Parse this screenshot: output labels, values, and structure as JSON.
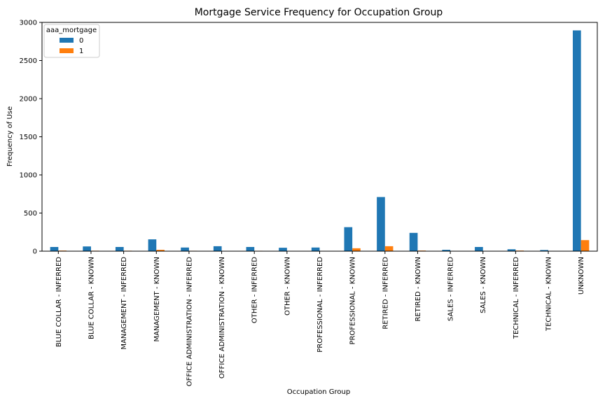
{
  "chart_data": {
    "type": "bar",
    "title": "Mortgage Service Frequency for Occupation Group",
    "xlabel": "Occupation Group",
    "ylabel": "Frequency of Use",
    "ylim": [
      0,
      3000
    ],
    "yticks": [
      0,
      500,
      1000,
      1500,
      2000,
      2500,
      3000
    ],
    "grid": false,
    "legend": {
      "title": "aaa_mortgage",
      "placement": "top-left"
    },
    "categories": [
      "BLUE COLLAR - INFERRED",
      "BLUE COLLAR - KNOWN",
      "MANAGEMENT - INFERRED",
      "MANAGEMENT - KNOWN",
      "OFFICE ADMINISTRATION - INFERRED",
      "OFFICE ADMINISTRATION - KNOWN",
      "OTHER - INFERRED",
      "OTHER - KNOWN",
      "PROFESSIONAL - INFERRED",
      "PROFESSIONAL - KNOWN",
      "RETIRED - INFERRED",
      "RETIRED - KNOWN",
      "SALES - INFERRED",
      "SALES - KNOWN",
      "TECHNICAL - INFERRED",
      "TECHNICAL - KNOWN",
      "UNKNOWN"
    ],
    "series": [
      {
        "name": "0",
        "color": "#1f77b4",
        "values": [
          55,
          62,
          55,
          155,
          48,
          65,
          55,
          45,
          48,
          315,
          710,
          240,
          18,
          55,
          25,
          15,
          2895
        ]
      },
      {
        "name": "1",
        "color": "#ff7f0e",
        "values": [
          8,
          6,
          6,
          18,
          5,
          2,
          5,
          0,
          0,
          38,
          65,
          8,
          0,
          0,
          8,
          0,
          145
        ]
      }
    ]
  }
}
